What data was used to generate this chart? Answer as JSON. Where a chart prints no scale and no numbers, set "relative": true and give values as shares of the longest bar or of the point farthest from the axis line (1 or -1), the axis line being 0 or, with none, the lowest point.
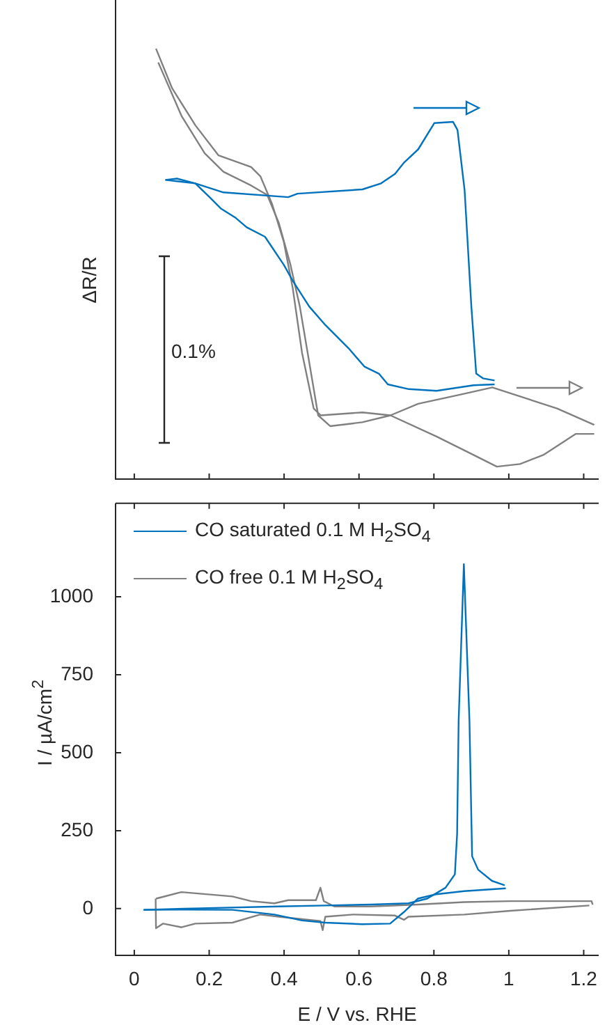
{
  "chart_data": [
    {
      "type": "line",
      "ylabel": "ΔR/R",
      "relative": true,
      "tick_labels": false,
      "xlim": [
        -0.05,
        1.24
      ],
      "xticks": [
        0,
        0.2,
        0.4,
        0.6,
        0.8,
        1,
        1.2
      ],
      "grid": false,
      "legend": false,
      "marker": "none",
      "line_style": "solid",
      "annotations": [
        "0.1%"
      ],
      "series": [
        {
          "color": "#0072bd",
          "x": [
            0.083,
            0.163,
            0.238,
            0.411,
            0.436,
            0.609,
            0.659,
            0.696,
            0.721,
            0.758,
            0.801,
            0.851,
            0.863,
            0.882,
            0.9,
            0.913,
            0.931,
            0.962
          ],
          "values": [
            0.695,
            0.687,
            0.666,
            0.655,
            0.663,
            0.673,
            0.687,
            0.709,
            0.736,
            0.766,
            0.827,
            0.83,
            0.811,
            0.671,
            0.401,
            0.245,
            0.234,
            0.229
          ]
        },
        {
          "color": "#0072bd",
          "x": [
            0.962,
            0.906,
            0.807,
            0.733,
            0.677,
            0.653,
            0.615,
            0.572,
            0.51,
            0.467,
            0.423,
            0.399,
            0.349,
            0.3,
            0.269,
            0.232,
            0.201,
            0.163,
            0.114,
            0.083
          ],
          "values": [
            0.22,
            0.218,
            0.205,
            0.209,
            0.22,
            0.245,
            0.261,
            0.304,
            0.358,
            0.401,
            0.461,
            0.498,
            0.563,
            0.585,
            0.608,
            0.628,
            0.655,
            0.687,
            0.698,
            0.695
          ]
        },
        {
          "color": "#808080",
          "x": [
            0.058,
            0.101,
            0.163,
            0.225,
            0.312,
            0.337,
            0.368,
            0.399,
            0.423,
            0.448,
            0.479,
            0.498,
            0.609,
            0.684,
            0.807,
            0.906,
            0.968,
            1.03,
            1.092,
            1.179,
            1.228
          ],
          "values": [
            1.0,
            0.908,
            0.822,
            0.752,
            0.725,
            0.703,
            0.639,
            0.552,
            0.444,
            0.293,
            0.164,
            0.148,
            0.155,
            0.148,
            0.099,
            0.056,
            0.029,
            0.035,
            0.056,
            0.105,
            0.105
          ]
        },
        {
          "color": "#808080",
          "x": [
            1.228,
            1.129,
            1.055,
            0.956,
            0.869,
            0.758,
            0.684,
            0.609,
            0.523,
            0.491,
            0.467,
            0.442,
            0.417,
            0.386,
            0.355,
            0.312,
            0.238,
            0.188,
            0.126,
            0.064
          ],
          "values": [
            0.126,
            0.164,
            0.185,
            0.213,
            0.196,
            0.175,
            0.148,
            0.132,
            0.123,
            0.148,
            0.272,
            0.401,
            0.498,
            0.595,
            0.66,
            0.682,
            0.714,
            0.757,
            0.844,
            0.968
          ]
        }
      ]
    },
    {
      "type": "line",
      "xlabel": "E / V vs. RHE",
      "ylabel": "I / µA/cm$^{2}$",
      "xlim": [
        -0.05,
        1.24
      ],
      "xticks": [
        0,
        0.2,
        0.4,
        0.6,
        0.8,
        1,
        1.2
      ],
      "ylim": [
        -150,
        1300
      ],
      "yticks": [
        0,
        250,
        500,
        750,
        1000
      ],
      "grid": false,
      "legend": "top left",
      "marker": "none",
      "line_style": "solid",
      "series": [
        {
          "name": "CO saturated 0.1 M H$_{2}$SO$_{4}$",
          "color": "#0072bd",
          "x": [
            0.025,
            0.176,
            0.386,
            0.51,
            0.633,
            0.732,
            0.782,
            0.831,
            0.856,
            0.862,
            0.866,
            0.88,
            0.895,
            0.902,
            0.918,
            0.955,
            0.989
          ],
          "values": [
            -4,
            1,
            7,
            10,
            13,
            17,
            32,
            67,
            110,
            240,
            600,
            1105,
            600,
            168,
            125,
            89,
            75
          ]
        },
        {
          "color": "#0072bd",
          "x": [
            0.992,
            0.881,
            0.806,
            0.757,
            0.72,
            0.683,
            0.609,
            0.51,
            0.448,
            0.374,
            0.262,
            0.139,
            0.025
          ],
          "values": [
            65,
            56,
            46,
            32,
            -11,
            -48,
            -50,
            -45,
            -38,
            -19,
            -4,
            -3,
            -4
          ]
        },
        {
          "name": "CO free 0.1 M H$_{2}$SO$_{4}$",
          "color": "#808080",
          "x": [
            0.058,
            0.071,
            0.126,
            0.262,
            0.312,
            0.374,
            0.411,
            0.485,
            0.497,
            0.506,
            0.534,
            0.633,
            0.757,
            0.881,
            1.004,
            1.221,
            1.224
          ],
          "values": [
            32,
            36,
            53,
            39,
            24,
            17,
            27,
            27,
            67,
            24,
            7,
            7,
            13,
            21,
            24,
            24,
            13
          ]
        },
        {
          "color": "#808080",
          "x": [
            1.215,
            1.004,
            0.881,
            0.732,
            0.72,
            0.695,
            0.584,
            0.51,
            0.503,
            0.497,
            0.386,
            0.336,
            0.262,
            0.163,
            0.126,
            0.077,
            0.058,
            0.057
          ],
          "values": [
            10,
            -7,
            -19,
            -26,
            -36,
            -22,
            -19,
            -26,
            -69,
            -40,
            -26,
            -19,
            -45,
            -48,
            -60,
            -48,
            -63,
            32
          ]
        }
      ]
    }
  ]
}
